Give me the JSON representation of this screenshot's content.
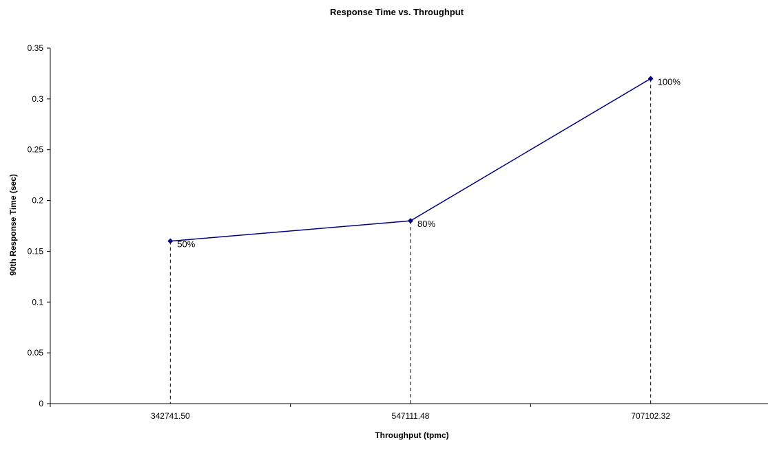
{
  "chart_data": {
    "type": "line",
    "title": "Response Time vs. Throughput",
    "xlabel": "Throughput (tpmc)",
    "ylabel": "90th Response Time (sec)",
    "categories": [
      "342741.50",
      "547111.48",
      "707102.32"
    ],
    "series": [
      {
        "values": [
          0.16,
          0.18,
          0.32
        ],
        "data_labels": [
          "50%",
          "80%",
          "100%"
        ],
        "color": "#000080"
      }
    ],
    "ylim": [
      0,
      0.35
    ],
    "yticks": [
      "0",
      "0.05",
      "0.1",
      "0.15",
      "0.2",
      "0.25",
      "0.3",
      "0.35"
    ],
    "drop_lines": true,
    "grid": false,
    "legend": "none"
  }
}
